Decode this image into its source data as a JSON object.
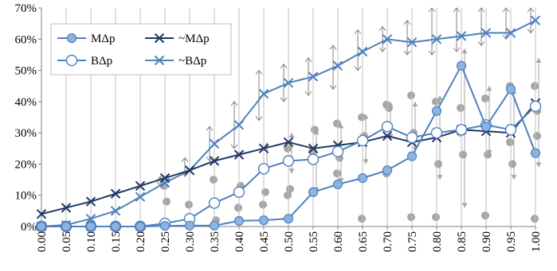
{
  "chart_data": {
    "type": "line",
    "title": "",
    "xlabel": "",
    "ylabel": "",
    "x": [
      "0.00",
      "0.05",
      "0.10",
      "0.15",
      "0.20",
      "0.25",
      "0.30",
      "0.35",
      "0.40",
      "0.45",
      "0.50",
      "0.55",
      "0.60",
      "0.65",
      "0.70",
      "0.75",
      "0.80",
      "0.85",
      "0.90",
      "0.95",
      "1.00"
    ],
    "ylim": [
      0,
      70
    ],
    "yticks": [
      "0%",
      "10%",
      "20%",
      "30%",
      "40%",
      "50%",
      "60%",
      "70%"
    ],
    "grid": "vertical",
    "legend": {
      "placement": "top-left"
    },
    "series": [
      {
        "name": "MΔp",
        "marker": "filled-circle",
        "color": "#4f81bd",
        "values": [
          0,
          0,
          0,
          0,
          0,
          0.2,
          0.3,
          0.3,
          1.8,
          2,
          2.5,
          11,
          13.5,
          15.5,
          18,
          22.5,
          37,
          51.5,
          32,
          44,
          23.5
        ]
      },
      {
        "name": "BΔp",
        "marker": "open-circle",
        "color": "#4f81bd",
        "values": [
          0,
          0,
          0,
          0,
          0,
          1,
          2.5,
          7.5,
          11,
          18.5,
          21,
          21.5,
          24,
          27.5,
          32,
          28.5,
          30,
          31,
          32.5,
          31,
          38.5
        ]
      },
      {
        "name": "~MΔp",
        "marker": "x",
        "color": "#1f3864",
        "values": [
          4,
          6,
          8,
          10.5,
          13,
          15.5,
          18,
          21,
          23,
          25,
          27,
          25,
          26,
          27,
          29,
          27,
          28.5,
          31,
          30.5,
          30,
          39.5
        ]
      },
      {
        "name": "~BΔp",
        "marker": "x",
        "color": "#4f81bd",
        "values": [
          0,
          0.5,
          2.5,
          5,
          9.5,
          14,
          18,
          26.5,
          32.5,
          42.5,
          46,
          48,
          51.5,
          56,
          60,
          59,
          60,
          61,
          62,
          62,
          66
        ]
      }
    ],
    "annotations": {
      "range_bars_color": "#a6a6a6",
      "grey_circles": [
        {
          "x": "0.25",
          "values": [
            13,
            8
          ]
        },
        {
          "x": "0.30",
          "values": [
            7,
            2
          ]
        },
        {
          "x": "0.35",
          "values": [
            15,
            2
          ]
        },
        {
          "x": "0.40",
          "values": [
            6,
            13
          ]
        },
        {
          "x": "0.45",
          "values": [
            7,
            11
          ]
        },
        {
          "x": "0.50",
          "values": [
            10,
            12,
            25
          ]
        },
        {
          "x": "0.55",
          "values": [
            24,
            31
          ]
        },
        {
          "x": "0.60",
          "values": [
            33,
            22,
            17
          ]
        },
        {
          "x": "0.65",
          "values": [
            2.5,
            29,
            35
          ]
        },
        {
          "x": "0.70",
          "values": [
            39,
            38,
            17
          ]
        },
        {
          "x": "0.75",
          "values": [
            42,
            30,
            3
          ]
        },
        {
          "x": "0.80",
          "values": [
            40,
            20,
            3
          ]
        },
        {
          "x": "0.85",
          "values": [
            38,
            23,
            30
          ]
        },
        {
          "x": "0.90",
          "values": [
            41,
            23,
            3.5
          ]
        },
        {
          "x": "0.95",
          "values": [
            45,
            20,
            27
          ]
        },
        {
          "x": "1.00",
          "values": [
            45,
            37,
            2.5,
            29
          ]
        }
      ],
      "grey_arrows": [
        {
          "x": "0.25",
          "range": [
            13,
            16
          ]
        },
        {
          "x": "0.30",
          "range": [
            16,
            22
          ]
        },
        {
          "x": "0.35",
          "range": [
            21,
            32
          ]
        },
        {
          "x": "0.40",
          "range": [
            25,
            40
          ]
        },
        {
          "x": "0.45",
          "range": [
            34,
            50
          ]
        },
        {
          "x": "0.50",
          "range": [
            40,
            52
          ]
        },
        {
          "x": "0.55",
          "range": [
            42,
            54
          ]
        },
        {
          "x": "0.60",
          "range": [
            44,
            58
          ]
        },
        {
          "x": "0.65",
          "range": [
            50,
            63
          ]
        },
        {
          "x": "0.70",
          "range": [
            56,
            64
          ]
        },
        {
          "x": "0.75",
          "range": [
            55,
            66
          ]
        },
        {
          "x": "0.80",
          "range": [
            55,
            70
          ]
        },
        {
          "x": "0.85",
          "range": [
            56,
            70
          ]
        },
        {
          "x": "0.90",
          "range": [
            58,
            70
          ]
        },
        {
          "x": "0.95",
          "range": [
            60,
            70
          ]
        },
        {
          "x": "1.00",
          "range": [
            62,
            70
          ]
        }
      ],
      "grey_triangles": [
        {
          "x": "0.45",
          "range": [
            17,
            27
          ]
        },
        {
          "x": "0.50",
          "range": [
            17,
            30
          ]
        },
        {
          "x": "0.55",
          "range": [
            11,
            31
          ]
        },
        {
          "x": "0.60",
          "range": [
            14,
            33
          ]
        },
        {
          "x": "0.65",
          "range": [
            20,
            36
          ]
        },
        {
          "x": "0.70",
          "range": [
            28,
            40
          ]
        },
        {
          "x": "0.75",
          "range": [
            24,
            40
          ]
        },
        {
          "x": "0.80",
          "range": [
            15,
            42
          ]
        },
        {
          "x": "0.85",
          "range": [
            6,
            57
          ]
        },
        {
          "x": "0.90",
          "range": [
            23,
            45
          ]
        },
        {
          "x": "0.95",
          "range": [
            15,
            44
          ]
        },
        {
          "x": "1.00",
          "range": [
            19,
            54
          ]
        }
      ]
    }
  }
}
